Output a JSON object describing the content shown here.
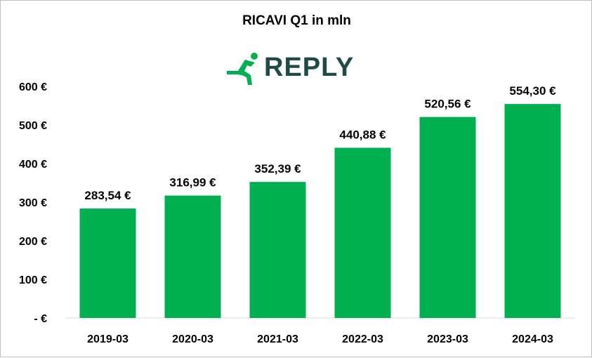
{
  "chart_data": {
    "type": "bar",
    "title": "RICAVI Q1 in mln",
    "categories": [
      "2019-03",
      "2020-03",
      "2021-03",
      "2022-03",
      "2023-03",
      "2024-03"
    ],
    "values": [
      283.54,
      316.99,
      352.39,
      440.88,
      520.56,
      554.3
    ],
    "data_labels": [
      "283,54 €",
      "316,99 €",
      "352,39 €",
      "440,88 €",
      "520,56 €",
      "554,30 €"
    ],
    "y_tick_values": [
      0,
      100,
      200,
      300,
      400,
      500,
      600
    ],
    "y_tick_labels": [
      "- €",
      "100 €",
      "200 €",
      "300 €",
      "400 €",
      "500 €",
      "600 €"
    ],
    "ylim": [
      0,
      600
    ],
    "xlabel": "",
    "ylabel": "",
    "grid": false,
    "legend": "none",
    "bar_color": "#00b050"
  },
  "logo": {
    "text": "REPLY",
    "text_color": "#1f4a48",
    "figure_color": "#00b050",
    "icon": "running-figure-icon"
  }
}
